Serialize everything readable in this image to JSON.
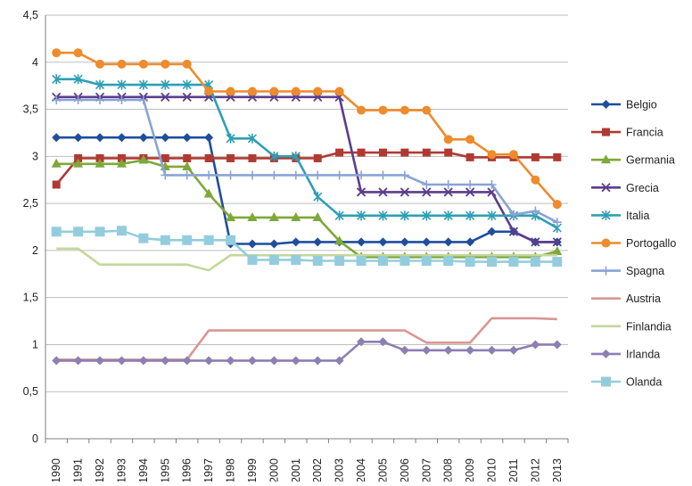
{
  "chart_data": {
    "type": "line",
    "categories": [
      "1990",
      "1991",
      "1992",
      "1993",
      "1994",
      "1995",
      "1996",
      "1997",
      "1998",
      "1999",
      "2000",
      "2001",
      "2002",
      "2003",
      "2004",
      "2005",
      "2006",
      "2007",
      "2008",
      "2009",
      "2010",
      "2011",
      "2012",
      "2013"
    ],
    "ylim": [
      0,
      4.5
    ],
    "yticks": [
      "0",
      "0,5",
      "1",
      "1,5",
      "2",
      "2,5",
      "3",
      "3,5",
      "4",
      "4,5"
    ],
    "grid": "horizontal",
    "legend_position": "right",
    "series": [
      {
        "name": "Belgio",
        "color": "#1f4e9c",
        "marker": "diamond",
        "values": [
          3.2,
          3.2,
          3.2,
          3.2,
          3.2,
          3.2,
          3.2,
          3.2,
          2.07,
          2.07,
          2.07,
          2.09,
          2.09,
          2.09,
          2.09,
          2.09,
          2.09,
          2.09,
          2.09,
          2.09,
          2.2,
          2.2,
          2.09,
          2.09
        ]
      },
      {
        "name": "Francia",
        "color": "#b03a32",
        "marker": "square",
        "values": [
          2.7,
          2.98,
          2.98,
          2.98,
          2.98,
          2.98,
          2.98,
          2.98,
          2.98,
          2.98,
          2.98,
          2.98,
          2.98,
          3.04,
          3.04,
          3.04,
          3.04,
          3.04,
          3.04,
          2.99,
          2.99,
          2.99,
          2.99,
          2.99
        ]
      },
      {
        "name": "Germania",
        "color": "#7ea83a",
        "marker": "triangle",
        "values": [
          2.92,
          2.92,
          2.92,
          2.92,
          2.96,
          2.89,
          2.89,
          2.6,
          2.35,
          2.35,
          2.35,
          2.35,
          2.35,
          2.1,
          1.93,
          1.93,
          1.93,
          1.93,
          1.93,
          1.93,
          1.93,
          1.93,
          1.93,
          1.99
        ]
      },
      {
        "name": "Grecia",
        "color": "#5b3d8c",
        "marker": "x",
        "values": [
          3.63,
          3.63,
          3.63,
          3.63,
          3.63,
          3.63,
          3.63,
          3.63,
          3.63,
          3.63,
          3.63,
          3.63,
          3.63,
          3.63,
          2.62,
          2.62,
          2.62,
          2.62,
          2.62,
          2.62,
          2.62,
          2.2,
          2.09,
          2.09
        ]
      },
      {
        "name": "Italia",
        "color": "#2e9fb5",
        "marker": "star",
        "values": [
          3.82,
          3.82,
          3.76,
          3.76,
          3.76,
          3.76,
          3.76,
          3.76,
          3.19,
          3.19,
          3.0,
          3.0,
          2.57,
          2.37,
          2.37,
          2.37,
          2.37,
          2.37,
          2.37,
          2.37,
          2.37,
          2.37,
          2.37,
          2.24
        ]
      },
      {
        "name": "Portogallo",
        "color": "#ee8b2c",
        "marker": "circle",
        "values": [
          4.1,
          4.1,
          3.98,
          3.98,
          3.98,
          3.98,
          3.98,
          3.69,
          3.69,
          3.69,
          3.69,
          3.69,
          3.69,
          3.69,
          3.49,
          3.49,
          3.49,
          3.49,
          3.18,
          3.18,
          3.02,
          3.02,
          2.75,
          2.49
        ]
      },
      {
        "name": "Spagna",
        "color": "#8aa3d6",
        "marker": "plus",
        "values": [
          3.6,
          3.6,
          3.6,
          3.6,
          3.6,
          2.8,
          2.8,
          2.8,
          2.8,
          2.8,
          2.8,
          2.8,
          2.8,
          2.8,
          2.8,
          2.8,
          2.8,
          2.7,
          2.7,
          2.7,
          2.7,
          2.38,
          2.42,
          2.3
        ]
      },
      {
        "name": "Austria",
        "color": "#d99694",
        "marker": "none",
        "values": [
          0.84,
          0.84,
          0.84,
          0.84,
          0.84,
          0.84,
          0.84,
          1.15,
          1.15,
          1.15,
          1.15,
          1.15,
          1.15,
          1.15,
          1.15,
          1.15,
          1.15,
          1.02,
          1.02,
          1.02,
          1.28,
          1.28,
          1.28,
          1.27
        ]
      },
      {
        "name": "Finlandia",
        "color": "#c4d79b",
        "marker": "none",
        "values": [
          2.02,
          2.02,
          1.85,
          1.85,
          1.85,
          1.85,
          1.85,
          1.79,
          1.95,
          1.95,
          1.95,
          1.95,
          1.95,
          1.95,
          1.95,
          1.95,
          1.95,
          1.95,
          1.95,
          1.95,
          1.95,
          1.95,
          1.95,
          1.95
        ]
      },
      {
        "name": "Irlanda",
        "color": "#8c7fb3",
        "marker": "diamond",
        "values": [
          0.83,
          0.83,
          0.83,
          0.83,
          0.83,
          0.83,
          0.83,
          0.83,
          0.83,
          0.83,
          0.83,
          0.83,
          0.83,
          0.83,
          1.03,
          1.03,
          0.94,
          0.94,
          0.94,
          0.94,
          0.94,
          0.94,
          1.0,
          1.0
        ]
      },
      {
        "name": "Olanda",
        "color": "#93cddd",
        "marker": "bigsquare",
        "values": [
          2.2,
          2.2,
          2.2,
          2.21,
          2.13,
          2.11,
          2.11,
          2.11,
          2.11,
          1.9,
          1.9,
          1.9,
          1.89,
          1.89,
          1.89,
          1.89,
          1.89,
          1.89,
          1.89,
          1.88,
          1.88,
          1.88,
          1.88,
          1.88
        ]
      }
    ]
  }
}
